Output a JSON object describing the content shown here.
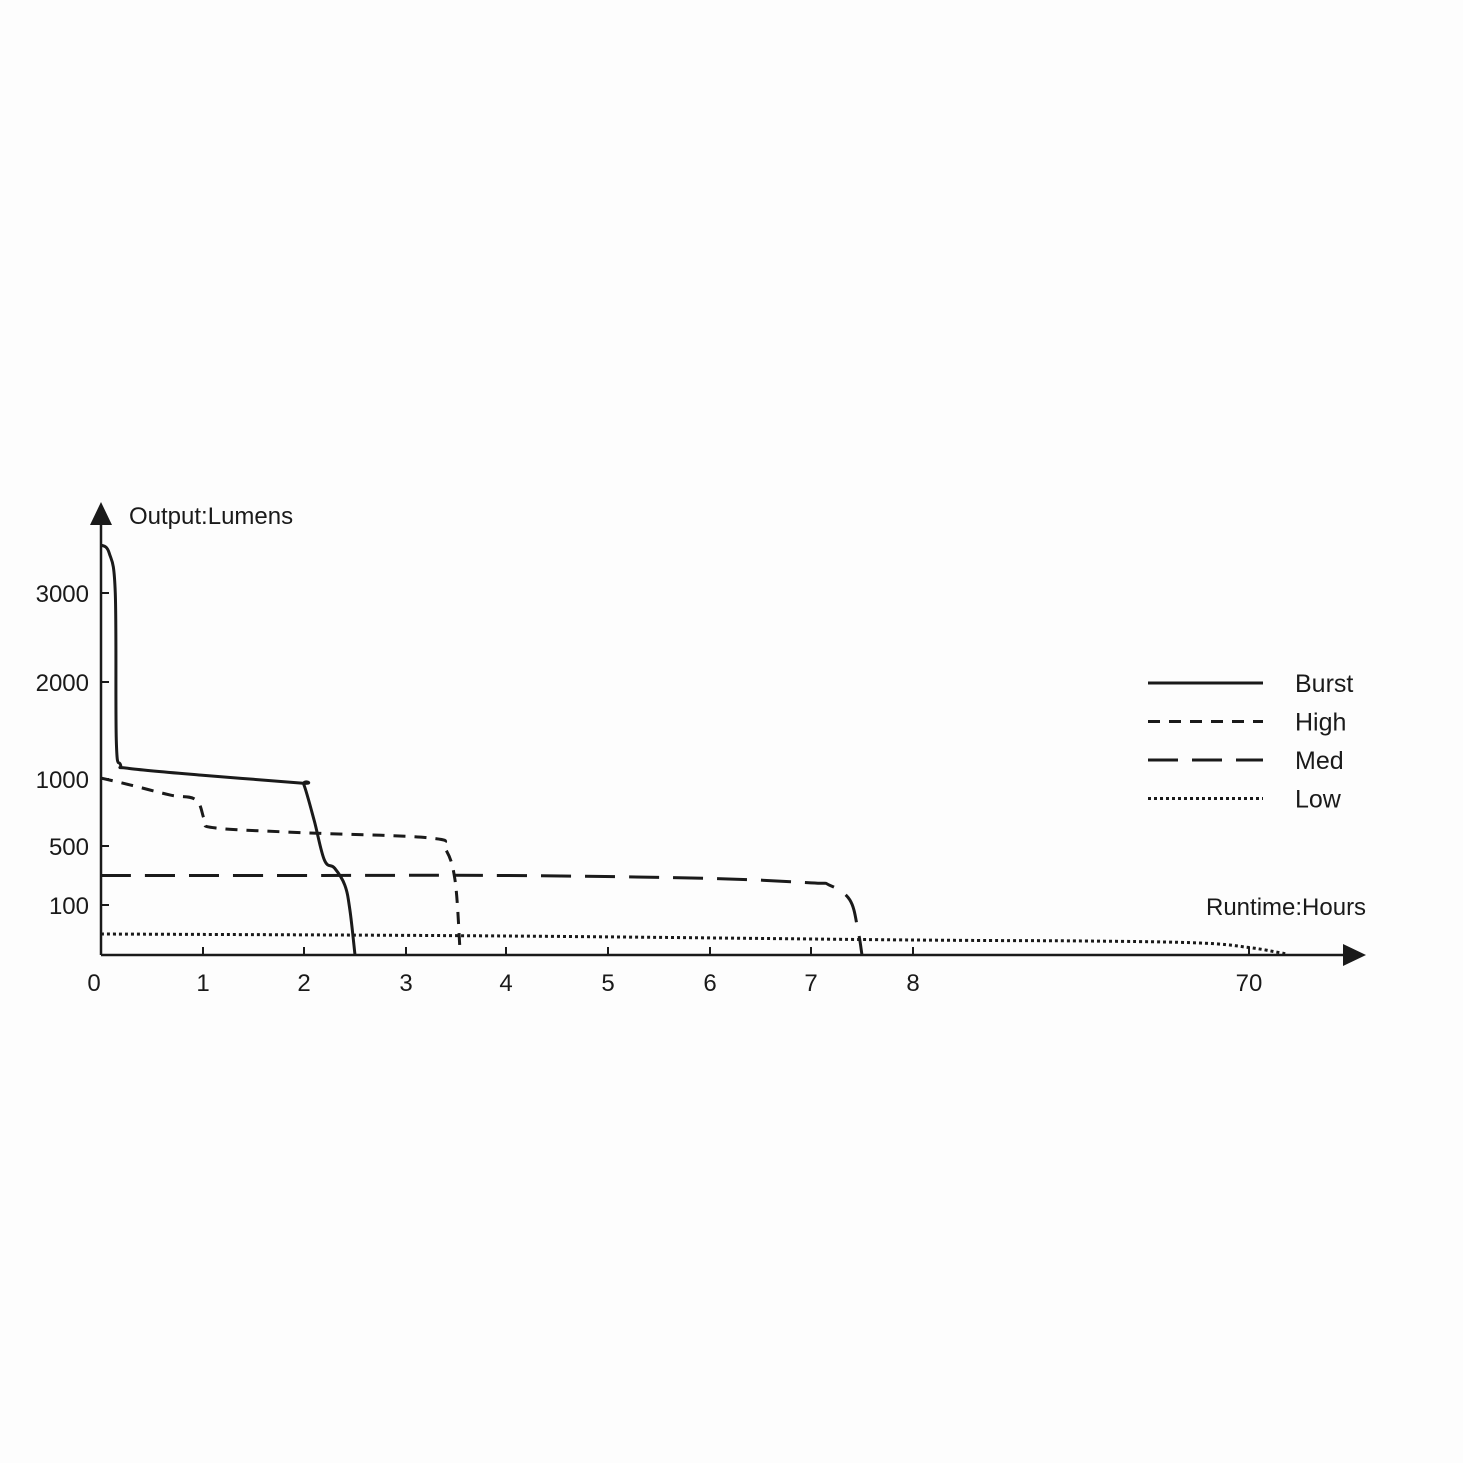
{
  "chart_data": {
    "type": "line",
    "title": "",
    "xlabel": "Runtime:Hours",
    "ylabel": "Output:Lumens",
    "x_ticks": [
      0,
      1,
      2,
      3,
      4,
      5,
      6,
      7,
      8,
      70
    ],
    "x_tick_labels": [
      "0",
      "1",
      "2",
      "3",
      "4",
      "5",
      "6",
      "7",
      "8",
      "70"
    ],
    "y_ticks": [
      100,
      500,
      1000,
      2000,
      3000
    ],
    "y_tick_labels": [
      "100",
      "500",
      "1000",
      "2000",
      "3000"
    ],
    "x_scale": "non-uniform (axis break between 8 and 70)",
    "y_scale": "non-uniform",
    "grid": false,
    "legend_position": "right",
    "line_color": "#1a1a1a",
    "series": [
      {
        "name": "Burst",
        "style": "solid",
        "x": [
          0,
          0.08,
          0.14,
          0.15,
          0.19,
          0.27,
          0.98,
          1.96,
          2.0,
          2.1,
          2.2,
          2.3,
          2.4,
          2.45,
          2.5
        ],
        "y": [
          3540,
          3450,
          3000,
          1400,
          1150,
          1110,
          1040,
          970,
          955,
          690,
          405,
          350,
          235,
          90,
          0
        ]
      },
      {
        "name": "High",
        "style": "dashed",
        "x": [
          0,
          0.29,
          0.68,
          0.93,
          1.02,
          1.12,
          1.96,
          3.24,
          3.39,
          3.49,
          3.54
        ],
        "y": [
          1010,
          955,
          880,
          845,
          690,
          635,
          600,
          560,
          485,
          270,
          10
        ]
      },
      {
        "name": "Med",
        "style": "long-dashed",
        "x": [
          0,
          2,
          4,
          6,
          7,
          7.18,
          7.38,
          7.46,
          7.5
        ],
        "y": [
          300,
          300,
          300,
          280,
          250,
          235,
          135,
          50,
          0
        ]
      },
      {
        "name": "Low",
        "style": "dotted",
        "x": [
          0,
          4,
          8,
          40,
          61,
          70,
          75,
          77
        ],
        "y": [
          42,
          38,
          30,
          28,
          24,
          15,
          6,
          2
        ]
      }
    ]
  }
}
